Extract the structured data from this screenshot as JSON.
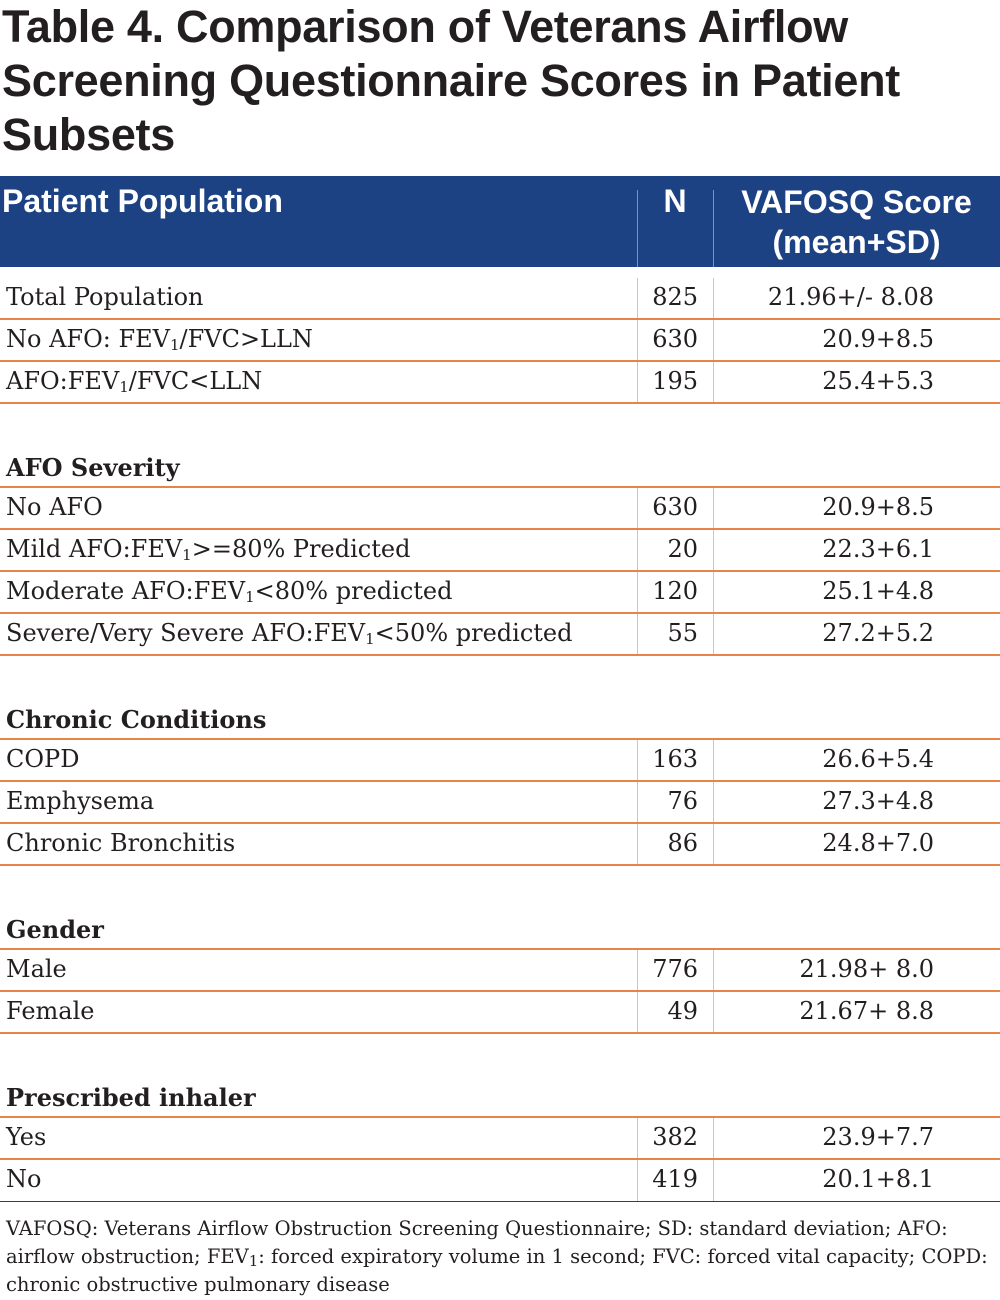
{
  "title": "Table 4. Comparison of Veterans Airflow Screening Questionnaire Scores in Patient Subsets",
  "columns": {
    "population": "Patient Population",
    "n": "N",
    "score_line1": "VAFOSQ Score",
    "score_line2": "(mean+SD)"
  },
  "rows_top": [
    {
      "label": "Total Population",
      "n": "825",
      "score": "21.96+/- 8.08"
    },
    {
      "label_a": "No AFO: FEV",
      "sub": "1",
      "label_b": "/FVC>LLN",
      "n": "630",
      "score": "20.9+8.5"
    },
    {
      "label_a": "AFO:FEV",
      "sub": "1",
      "label_b": "/FVC<LLN",
      "n": "195",
      "score": "25.4+5.3"
    }
  ],
  "afo_severity": {
    "heading": "AFO Severity",
    "rows": [
      {
        "label": "No AFO",
        "n": "630",
        "score": "20.9+8.5"
      },
      {
        "label_a": "Mild AFO:FEV",
        "sub": "1",
        "label_b": ">=80% Predicted",
        "n": "20",
        "score": "22.3+6.1"
      },
      {
        "label_a": "Moderate AFO:FEV",
        "sub": "1",
        "label_b": "<80% predicted",
        "n": "120",
        "score": "25.1+4.8"
      },
      {
        "label_a": "Severe/Very Severe AFO:FEV",
        "sub": "1",
        "label_b": "<50% predicted",
        "n": "55",
        "score": "27.2+5.2"
      }
    ]
  },
  "chronic_conditions": {
    "heading": "Chronic Conditions",
    "rows": [
      {
        "label": "COPD",
        "n": "163",
        "score": "26.6+5.4"
      },
      {
        "label": "Emphysema",
        "n": "76",
        "score": "27.3+4.8"
      },
      {
        "label": "Chronic Bronchitis",
        "n": "86",
        "score": "24.8+7.0"
      }
    ]
  },
  "gender": {
    "heading": "Gender",
    "rows": [
      {
        "label": "Male",
        "n": "776",
        "score": "21.98+ 8.0"
      },
      {
        "label": "Female",
        "n": "49",
        "score": "21.67+ 8.8"
      }
    ]
  },
  "prescribed_inhaler": {
    "heading": "Prescribed inhaler",
    "rows": [
      {
        "label": "Yes",
        "n": "382",
        "score": "23.9+7.7"
      },
      {
        "label": "No",
        "n": "419",
        "score": "20.1+8.1"
      }
    ]
  },
  "footnote": {
    "part_a": "VAFOSQ:  Veterans Airflow Obstruction Screening Questionnaire; SD:  standard deviation; AFO: airflow obstruction; FEV",
    "sub": "1",
    "part_b": ":  forced expiratory volume in 1 second; FVC:  forced vital capacity; COPD:  chronic obstructive pulmonary disease"
  },
  "colors": {
    "header_bg": "#1d4283",
    "row_rule": "#e8834a",
    "text": "#231f20"
  }
}
